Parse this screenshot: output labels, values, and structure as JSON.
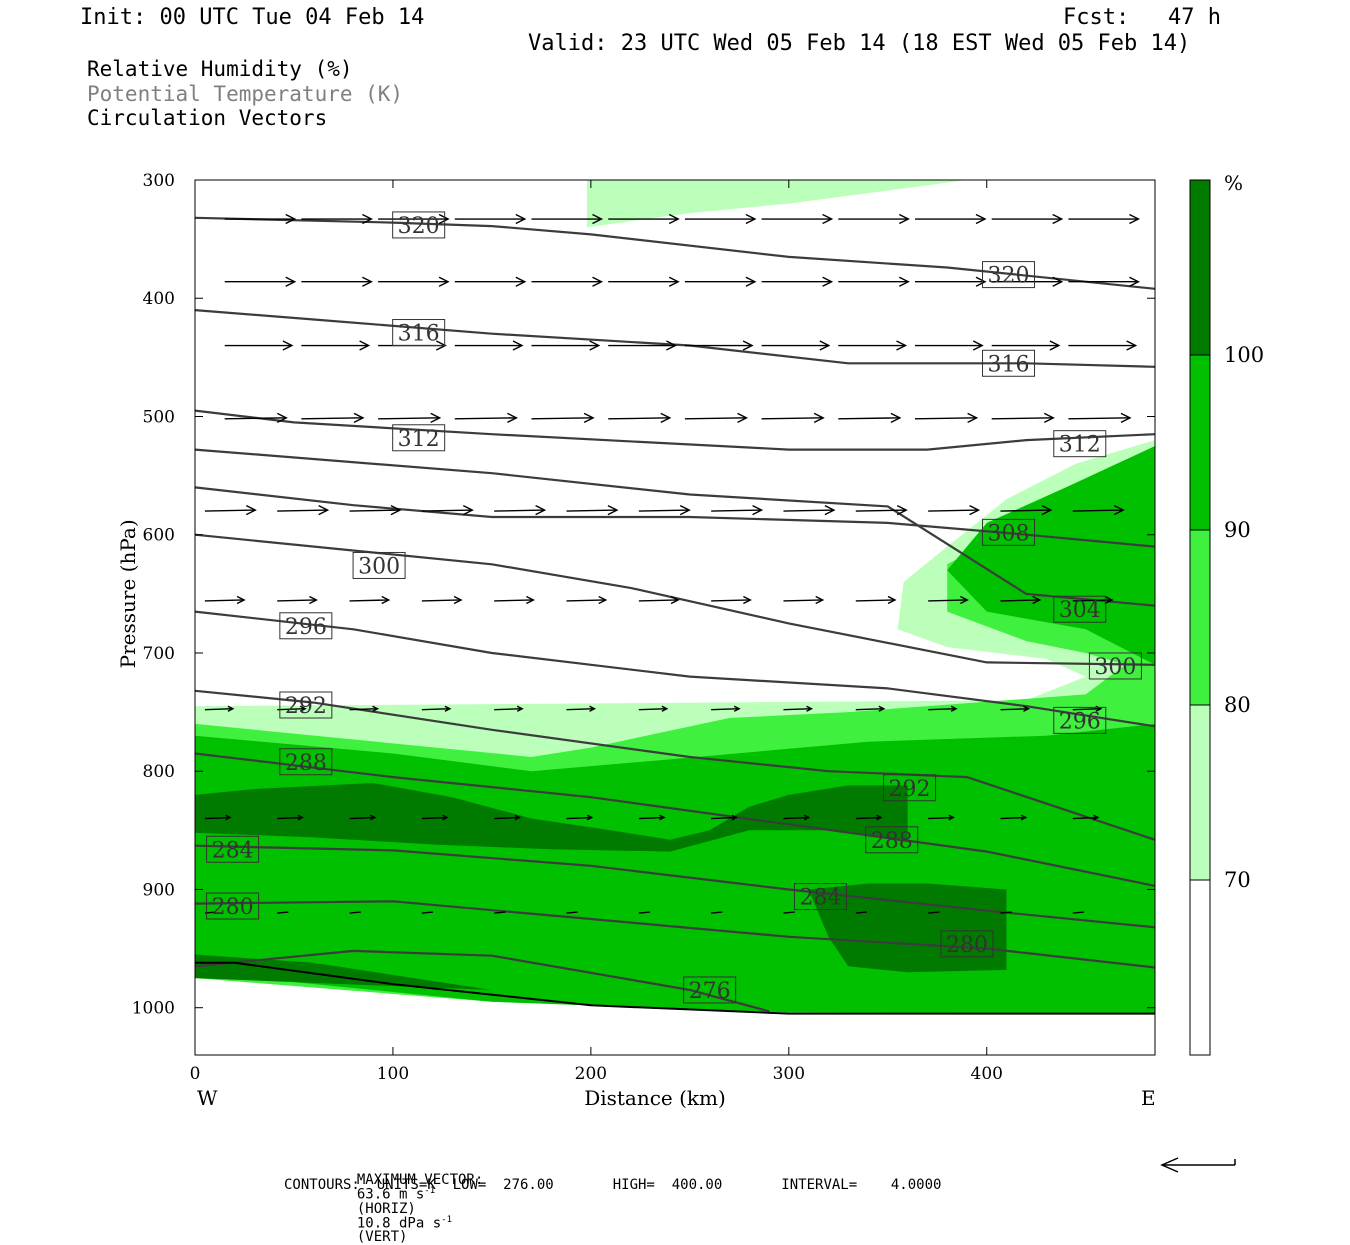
{
  "header": {
    "init": "Init: 00 UTC Tue 04 Feb 14",
    "fcst_label": "Fcst:",
    "fcst_value": "47 h",
    "valid": "Valid: 23 UTC Wed 05 Feb 14 (18 EST Wed 05 Feb 14)"
  },
  "legend": {
    "line1": "Relative Humidity (%)",
    "line2": "Potential Temperature (K)",
    "line3": "Circulation Vectors"
  },
  "footer": {
    "max_vector_label": "MAXIMUM VECTOR:",
    "horiz_value": "63.6 m s",
    "horiz_unit": "(HORIZ)",
    "vert_value": "10.8 dPa s",
    "vert_unit": "(VERT)",
    "exponent": "-1",
    "contours": "CONTOURS:  UNITS=K  LOW=  276.00       HIGH=  400.00       INTERVAL=    4.0000"
  },
  "colors": {
    "rh_70_80": "#bbffbb",
    "rh_80_90": "#3ff03f",
    "rh_90_100": "#00c000",
    "rh_100": "#007b00",
    "contour": "#3c3c3c"
  },
  "chart_data": {
    "type": "cross-section",
    "xlabel": "Distance (km)",
    "ylabel": "Pressure (hPa)",
    "xlim": [
      0,
      485
    ],
    "ylim": [
      1040,
      300
    ],
    "x_ticks": [
      0,
      100,
      200,
      300,
      400
    ],
    "y_ticks": [
      300,
      400,
      500,
      600,
      700,
      800,
      900,
      1000
    ],
    "left_end_label": "W",
    "right_end_label": "E",
    "colorbar": {
      "unit": "%",
      "levels": [
        70,
        80,
        90,
        100
      ],
      "colors": [
        "#ffffff",
        "#bbffbb",
        "#3ff03f",
        "#00c000",
        "#007b00"
      ]
    },
    "rh_regions": [
      {
        "level": 70,
        "points": [
          [
            198,
            300
          ],
          [
            390,
            300
          ],
          [
            300,
            320
          ],
          [
            250,
            328
          ],
          [
            198,
            340
          ]
        ]
      },
      {
        "level": 70,
        "points": [
          [
            485,
            520
          ],
          [
            445,
            540
          ],
          [
            410,
            570
          ],
          [
            380,
            610
          ],
          [
            358,
            640
          ],
          [
            355,
            680
          ],
          [
            380,
            695
          ],
          [
            430,
            705
          ],
          [
            450,
            720
          ],
          [
            420,
            740
          ],
          [
            0,
            745
          ],
          [
            0,
            935
          ],
          [
            485,
            935
          ]
        ]
      },
      {
        "level": 70,
        "points": [
          [
            0,
            960
          ],
          [
            485,
            960
          ],
          [
            485,
            1005
          ],
          [
            300,
            1004
          ],
          [
            150,
            995
          ],
          [
            0,
            975
          ]
        ]
      },
      {
        "level": 80,
        "points": [
          [
            485,
            545
          ],
          [
            450,
            560
          ],
          [
            420,
            590
          ],
          [
            380,
            625
          ],
          [
            380,
            665
          ],
          [
            420,
            690
          ],
          [
            450,
            700
          ],
          [
            470,
            710
          ],
          [
            450,
            735
          ],
          [
            330,
            750
          ],
          [
            270,
            755
          ],
          [
            200,
            780
          ],
          [
            170,
            788
          ],
          [
            0,
            760
          ],
          [
            0,
            950
          ],
          [
            485,
            950
          ]
        ]
      },
      {
        "level": 80,
        "points": [
          [
            0,
            958
          ],
          [
            485,
            958
          ],
          [
            485,
            1005
          ],
          [
            300,
            1004
          ],
          [
            150,
            995
          ],
          [
            0,
            975
          ]
        ]
      },
      {
        "level": 90,
        "points": [
          [
            485,
            525
          ],
          [
            440,
            560
          ],
          [
            400,
            590
          ],
          [
            380,
            630
          ],
          [
            400,
            665
          ],
          [
            450,
            680
          ],
          [
            485,
            710
          ],
          [
            485,
            760
          ],
          [
            430,
            770
          ],
          [
            340,
            775
          ],
          [
            240,
            790
          ],
          [
            170,
            800
          ],
          [
            100,
            785
          ],
          [
            0,
            770
          ],
          [
            0,
            960
          ],
          [
            485,
            960
          ]
        ]
      },
      {
        "level": 90,
        "points": [
          [
            0,
            958
          ],
          [
            485,
            958
          ],
          [
            485,
            1005
          ],
          [
            300,
            1004
          ],
          [
            150,
            995
          ],
          [
            0,
            970
          ]
        ]
      },
      {
        "level": 100,
        "points": [
          [
            0,
            820
          ],
          [
            30,
            815
          ],
          [
            90,
            810
          ],
          [
            130,
            822
          ],
          [
            170,
            840
          ],
          [
            210,
            850
          ],
          [
            240,
            858
          ],
          [
            260,
            850
          ],
          [
            280,
            830
          ],
          [
            300,
            820
          ],
          [
            330,
            812
          ],
          [
            360,
            812
          ],
          [
            360,
            860
          ],
          [
            320,
            850
          ],
          [
            280,
            850
          ],
          [
            240,
            868
          ],
          [
            180,
            866
          ],
          [
            120,
            862
          ],
          [
            60,
            856
          ],
          [
            0,
            852
          ]
        ]
      },
      {
        "level": 100,
        "points": [
          [
            310,
            900
          ],
          [
            340,
            895
          ],
          [
            370,
            895
          ],
          [
            410,
            900
          ],
          [
            410,
            968
          ],
          [
            360,
            970
          ],
          [
            330,
            965
          ],
          [
            320,
            940
          ]
        ]
      },
      {
        "level": 100,
        "points": [
          [
            0,
            955
          ],
          [
            60,
            962
          ],
          [
            150,
            985
          ],
          [
            0,
            975
          ]
        ]
      }
    ],
    "theta_contours": [
      {
        "value": 320,
        "labels": [
          [
            113,
            338
          ]
        ],
        "points": [
          [
            0,
            332
          ],
          [
            100,
            336
          ],
          [
            150,
            339
          ],
          [
            200,
            346
          ],
          [
            300,
            365
          ],
          [
            380,
            374
          ],
          [
            485,
            392
          ]
        ]
      },
      {
        "value": 320,
        "labels": [
          [
            411,
            380
          ]
        ],
        "points": []
      },
      {
        "value": 316,
        "labels": [
          [
            113,
            429
          ],
          [
            411,
            455
          ]
        ],
        "points": [
          [
            0,
            410
          ],
          [
            60,
            418
          ],
          [
            150,
            430
          ],
          [
            250,
            440
          ],
          [
            330,
            455
          ],
          [
            420,
            455
          ],
          [
            485,
            458
          ]
        ]
      },
      {
        "value": 312,
        "labels": [
          [
            113,
            518
          ],
          [
            447,
            523
          ]
        ],
        "points": [
          [
            0,
            495
          ],
          [
            50,
            505
          ],
          [
            150,
            515
          ],
          [
            300,
            528
          ],
          [
            370,
            528
          ],
          [
            420,
            520
          ],
          [
            485,
            515
          ]
        ]
      },
      {
        "value": 308,
        "labels": [
          [
            411,
            598
          ]
        ],
        "points": [
          [
            0,
            560
          ],
          [
            80,
            575
          ],
          [
            150,
            585
          ],
          [
            250,
            585
          ],
          [
            350,
            590
          ],
          [
            420,
            600
          ],
          [
            485,
            610
          ]
        ]
      },
      {
        "value": 304,
        "labels": [
          [
            447,
            663
          ]
        ],
        "points": [
          [
            0,
            528
          ],
          [
            150,
            548
          ],
          [
            250,
            566
          ],
          [
            350,
            576
          ],
          [
            420,
            650
          ],
          [
            485,
            660
          ]
        ]
      },
      {
        "value": 300,
        "labels": [
          [
            93,
            626
          ],
          [
            465,
            711
          ]
        ],
        "points": [
          [
            0,
            600
          ],
          [
            90,
            615
          ],
          [
            150,
            625
          ],
          [
            220,
            645
          ],
          [
            300,
            675
          ],
          [
            400,
            708
          ],
          [
            485,
            710
          ]
        ]
      },
      {
        "value": 296,
        "labels": [
          [
            56,
            677
          ],
          [
            447,
            757
          ]
        ],
        "points": [
          [
            0,
            665
          ],
          [
            80,
            680
          ],
          [
            150,
            700
          ],
          [
            250,
            720
          ],
          [
            350,
            730
          ],
          [
            420,
            745
          ],
          [
            485,
            762
          ]
        ]
      },
      {
        "value": 292,
        "labels": [
          [
            56,
            744
          ],
          [
            361,
            814
          ]
        ],
        "points": [
          [
            0,
            732
          ],
          [
            60,
            742
          ],
          [
            150,
            765
          ],
          [
            250,
            788
          ],
          [
            320,
            800
          ],
          [
            390,
            805
          ],
          [
            485,
            858
          ]
        ]
      },
      {
        "value": 288,
        "labels": [
          [
            56,
            792
          ],
          [
            352,
            858
          ]
        ],
        "points": [
          [
            0,
            785
          ],
          [
            100,
            805
          ],
          [
            200,
            822
          ],
          [
            300,
            845
          ],
          [
            400,
            868
          ],
          [
            485,
            897
          ]
        ]
      },
      {
        "value": 284,
        "labels": [
          [
            19,
            866
          ],
          [
            316,
            906
          ]
        ],
        "points": [
          [
            0,
            863
          ],
          [
            100,
            867
          ],
          [
            200,
            880
          ],
          [
            300,
            900
          ],
          [
            400,
            918
          ],
          [
            485,
            932
          ]
        ]
      },
      {
        "value": 280,
        "labels": [
          [
            19,
            914
          ],
          [
            390,
            946
          ]
        ],
        "points": [
          [
            0,
            912
          ],
          [
            100,
            910
          ],
          [
            200,
            925
          ],
          [
            300,
            940
          ],
          [
            400,
            950
          ],
          [
            485,
            966
          ]
        ]
      },
      {
        "value": 276,
        "labels": [
          [
            260,
            985
          ]
        ],
        "points": [
          [
            0,
            965
          ],
          [
            80,
            952
          ],
          [
            150,
            956
          ],
          [
            250,
            985
          ],
          [
            290,
            1003
          ]
        ]
      }
    ],
    "terrain": [
      [
        0,
        962
      ],
      [
        20,
        962
      ],
      [
        100,
        980
      ],
      [
        200,
        998
      ],
      [
        300,
        1005
      ],
      [
        485,
        1005
      ]
    ],
    "vector_rows": [
      {
        "p": 333,
        "dx": 25,
        "x0": 15,
        "count": 13
      },
      {
        "p": 386,
        "dx": 25,
        "x0": 15,
        "count": 13
      },
      {
        "p": 440,
        "dx": 24,
        "x0": 15,
        "count": 13
      },
      {
        "p": 502,
        "dx": 22,
        "x0": 15,
        "count": 13
      },
      {
        "p": 580,
        "dx": 18,
        "x0": 5,
        "count": 14
      },
      {
        "p": 656,
        "dx": 14,
        "x0": 5,
        "count": 14
      },
      {
        "p": 748,
        "dx": 10,
        "x0": 5,
        "count": 14
      },
      {
        "p": 840,
        "dx": 9,
        "x0": 5,
        "count": 14
      },
      {
        "p": 920,
        "dx": 4,
        "x0": 5,
        "count": 14
      }
    ]
  }
}
